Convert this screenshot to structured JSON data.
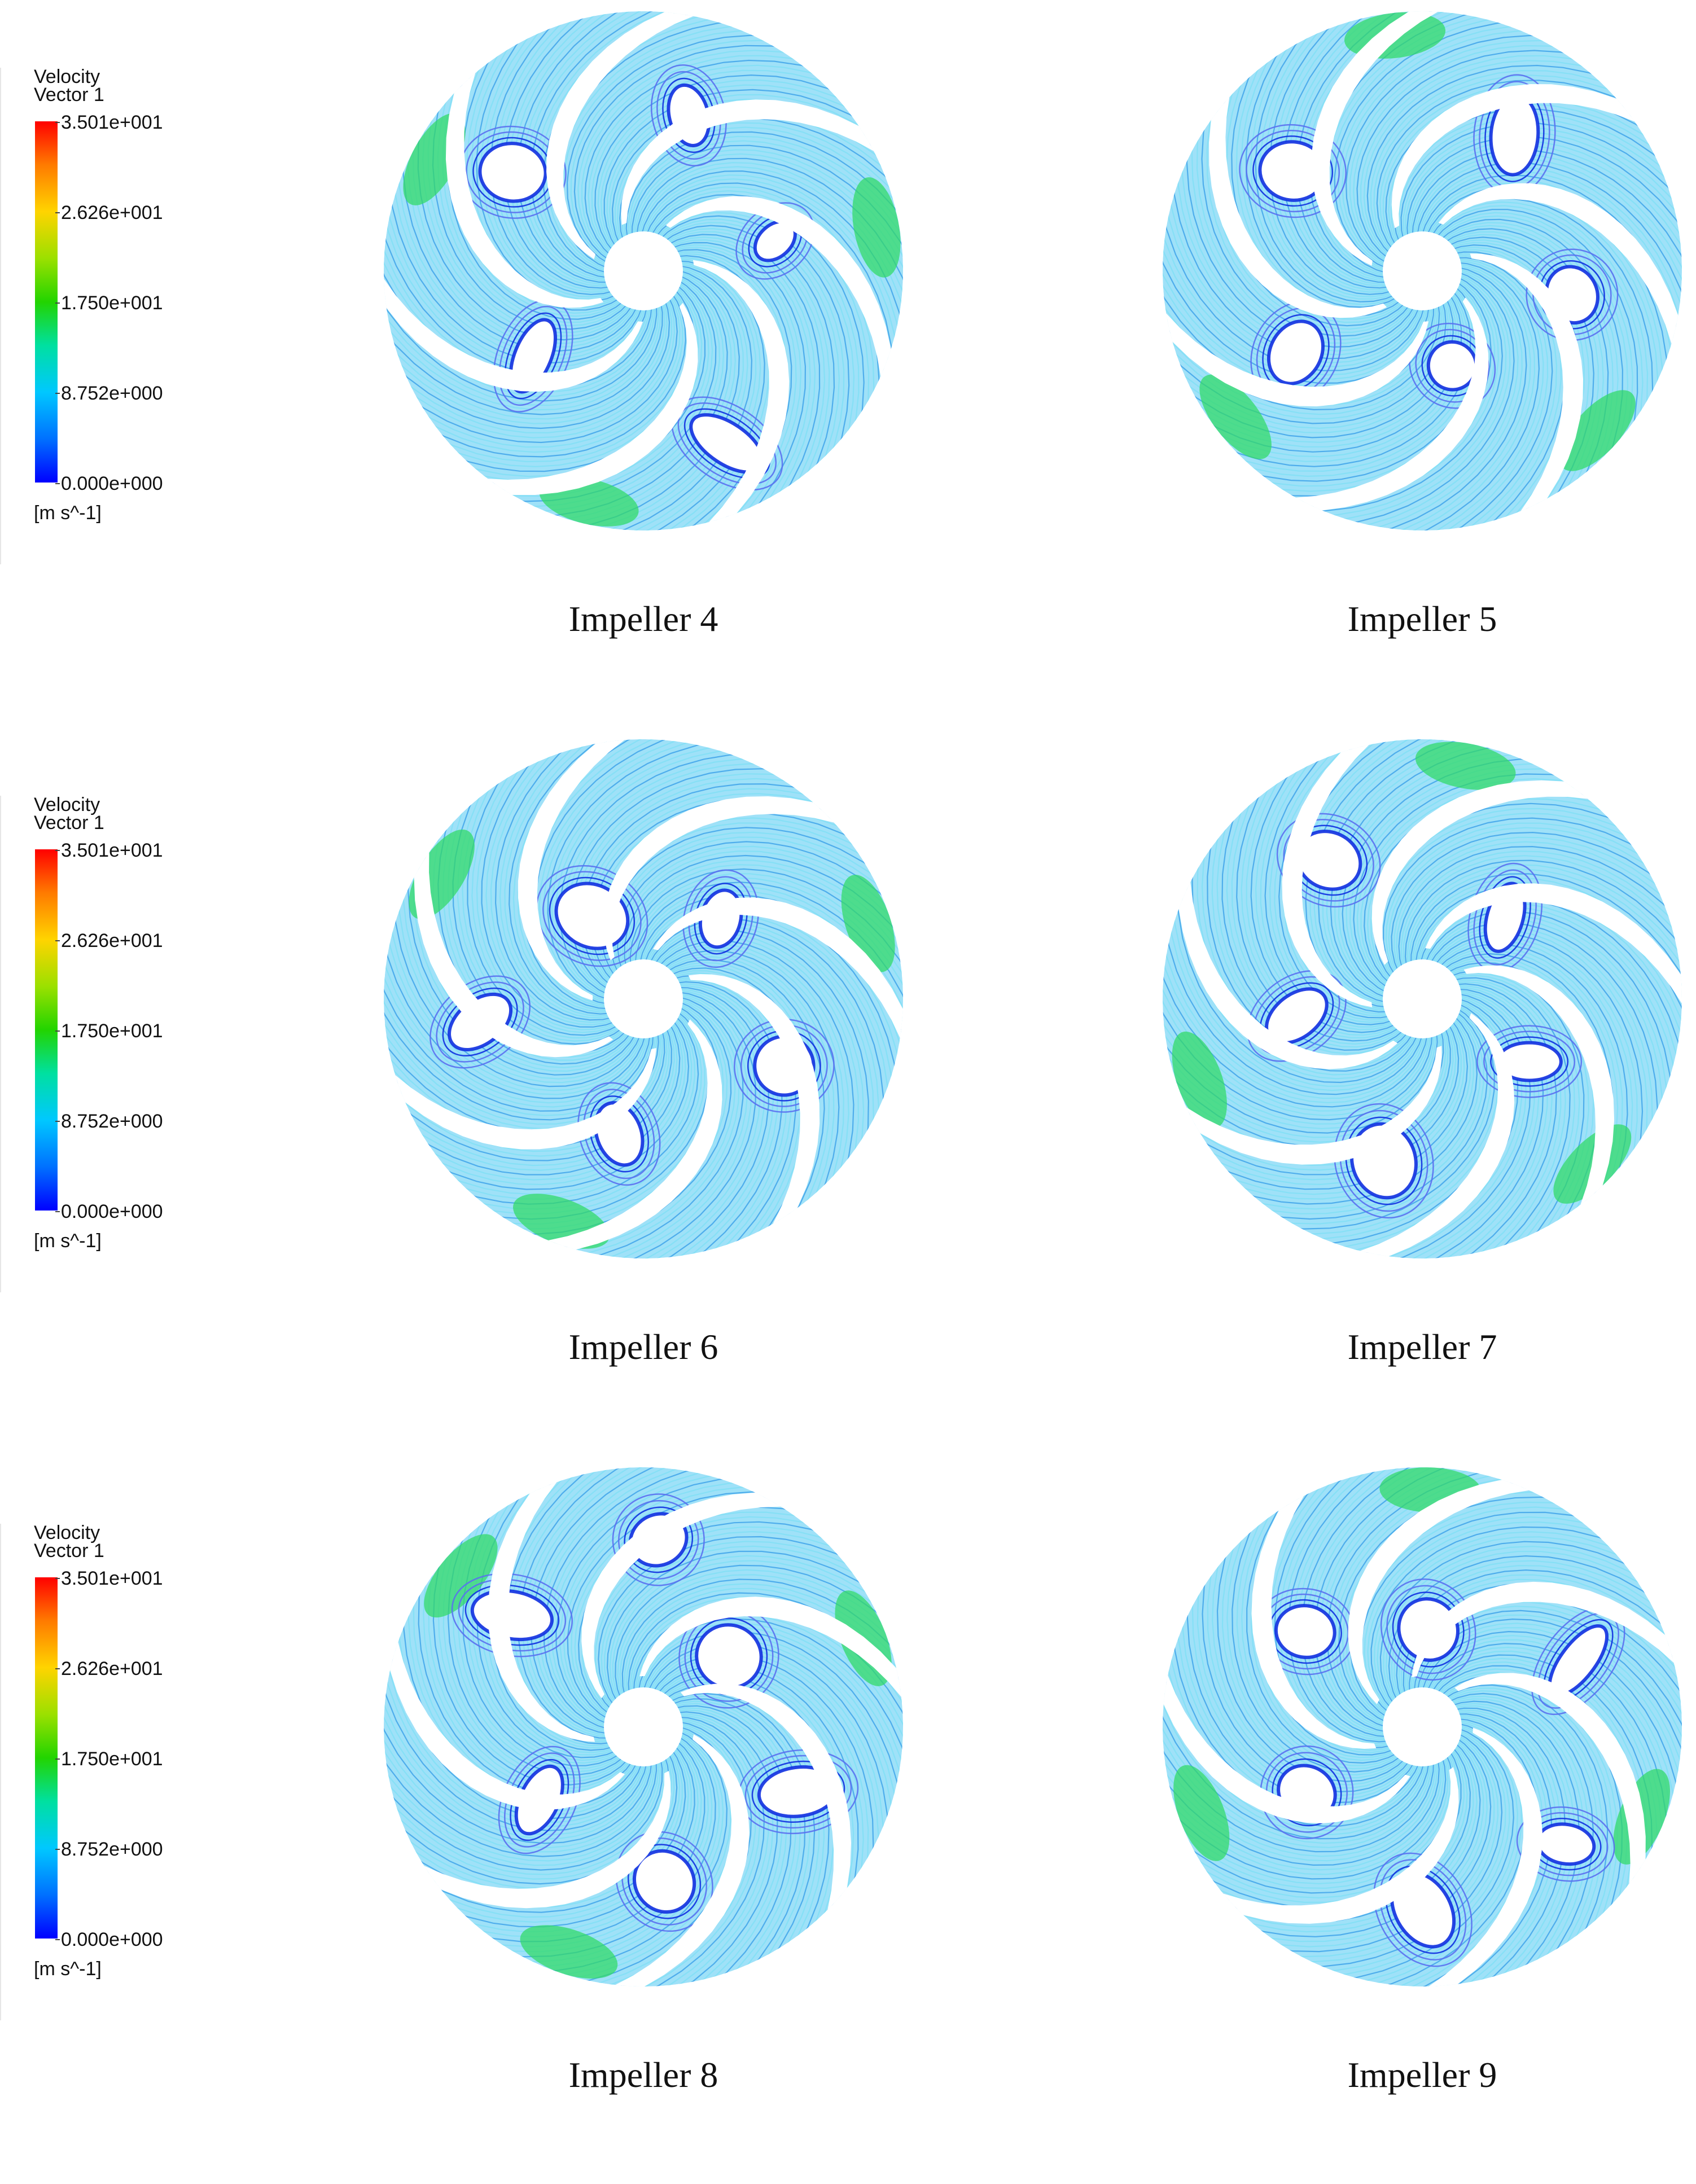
{
  "legend": {
    "title_line1": "Velocity",
    "title_line2": "Vector 1",
    "ticks": [
      "3.501e+001",
      "2.626e+001",
      "1.750e+001",
      "8.752e+000",
      "0.000e+000"
    ],
    "unit": "[m s^-1]",
    "colors": [
      "#ff0000",
      "#ffd400",
      "#22d400",
      "#00c8ff",
      "#0000ff"
    ]
  },
  "rows": [
    {
      "panels": [
        {
          "caption": "Impeller 4"
        },
        {
          "caption": "Impeller 5"
        }
      ]
    },
    {
      "panels": [
        {
          "caption": "Impeller 6"
        },
        {
          "caption": "Impeller 7"
        }
      ]
    },
    {
      "panels": [
        {
          "caption": "Impeller 8"
        },
        {
          "caption": "Impeller 9"
        }
      ]
    }
  ]
}
